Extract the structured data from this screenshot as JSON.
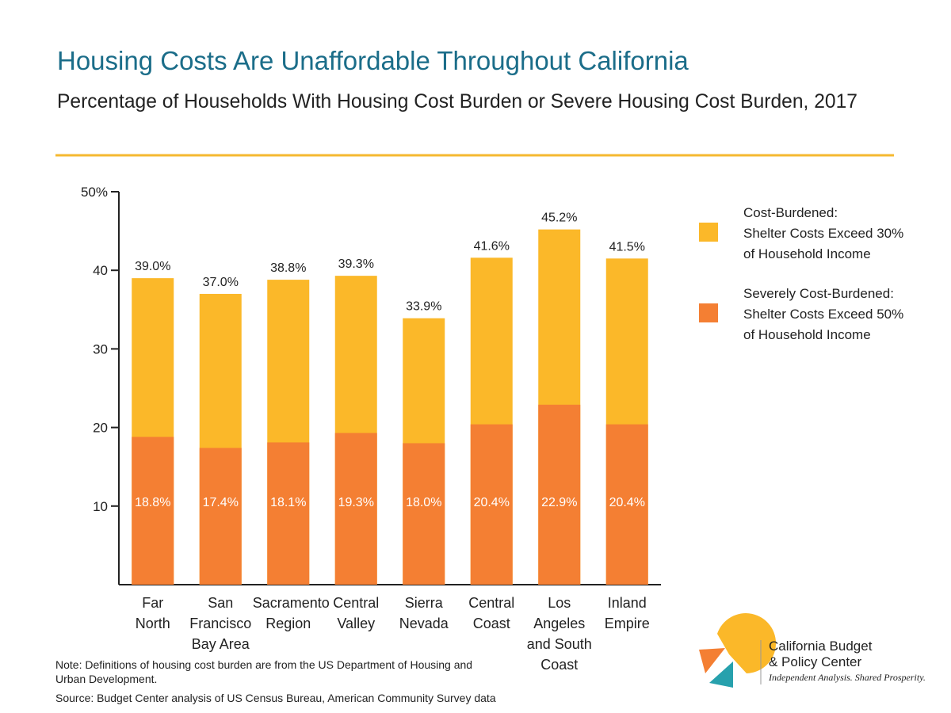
{
  "chart_data": {
    "type": "bar",
    "barmode": "overlay",
    "title": "Housing Costs Are Unaffordable Throughout California",
    "subtitle": "Percentage of Households With Housing Cost Burden or Severe Housing Cost Burden, 2017",
    "categories": [
      "Far\nNorth",
      "San\nFrancisco\nBay Area",
      "Sacramento\nRegion",
      "Central\nValley",
      "Sierra\nNevada",
      "Central\nCoast",
      "Los Angeles\nand South\nCoast",
      "Inland\nEmpire"
    ],
    "series": [
      {
        "name": "Cost-Burdened:\nShelter Costs Exceed 30%\nof Household Income",
        "color": "#fbb829",
        "values": [
          39.0,
          37.0,
          38.8,
          39.3,
          33.9,
          41.6,
          45.2,
          41.5
        ],
        "value_labels": [
          "39.0%",
          "37.0%",
          "38.8%",
          "39.3%",
          "33.9%",
          "41.6%",
          "45.2%",
          "41.5%"
        ]
      },
      {
        "name": "Severely Cost-Burdened:\nShelter Costs Exceed 50%\nof Household Income",
        "color": "#f47f33",
        "values": [
          18.8,
          17.4,
          18.1,
          19.3,
          18.0,
          20.4,
          22.9,
          20.4
        ],
        "value_labels": [
          "18.8%",
          "17.4%",
          "18.1%",
          "19.3%",
          "18.0%",
          "20.4%",
          "22.9%",
          "20.4%"
        ]
      }
    ],
    "ylim": [
      0,
      50
    ],
    "yticks": [
      10,
      20,
      30,
      40,
      {
        "value": 50,
        "label": "50%"
      }
    ],
    "note": "Note: Definitions of housing cost burden are from the US Department of Housing and\nUrban Development.",
    "source": "Source: Budget Center analysis of US Census Bureau, American Community Survey data"
  },
  "logo": {
    "name": "California Budget\n& Policy Center",
    "tagline": "Independent Analysis. Shared Prosperity."
  }
}
